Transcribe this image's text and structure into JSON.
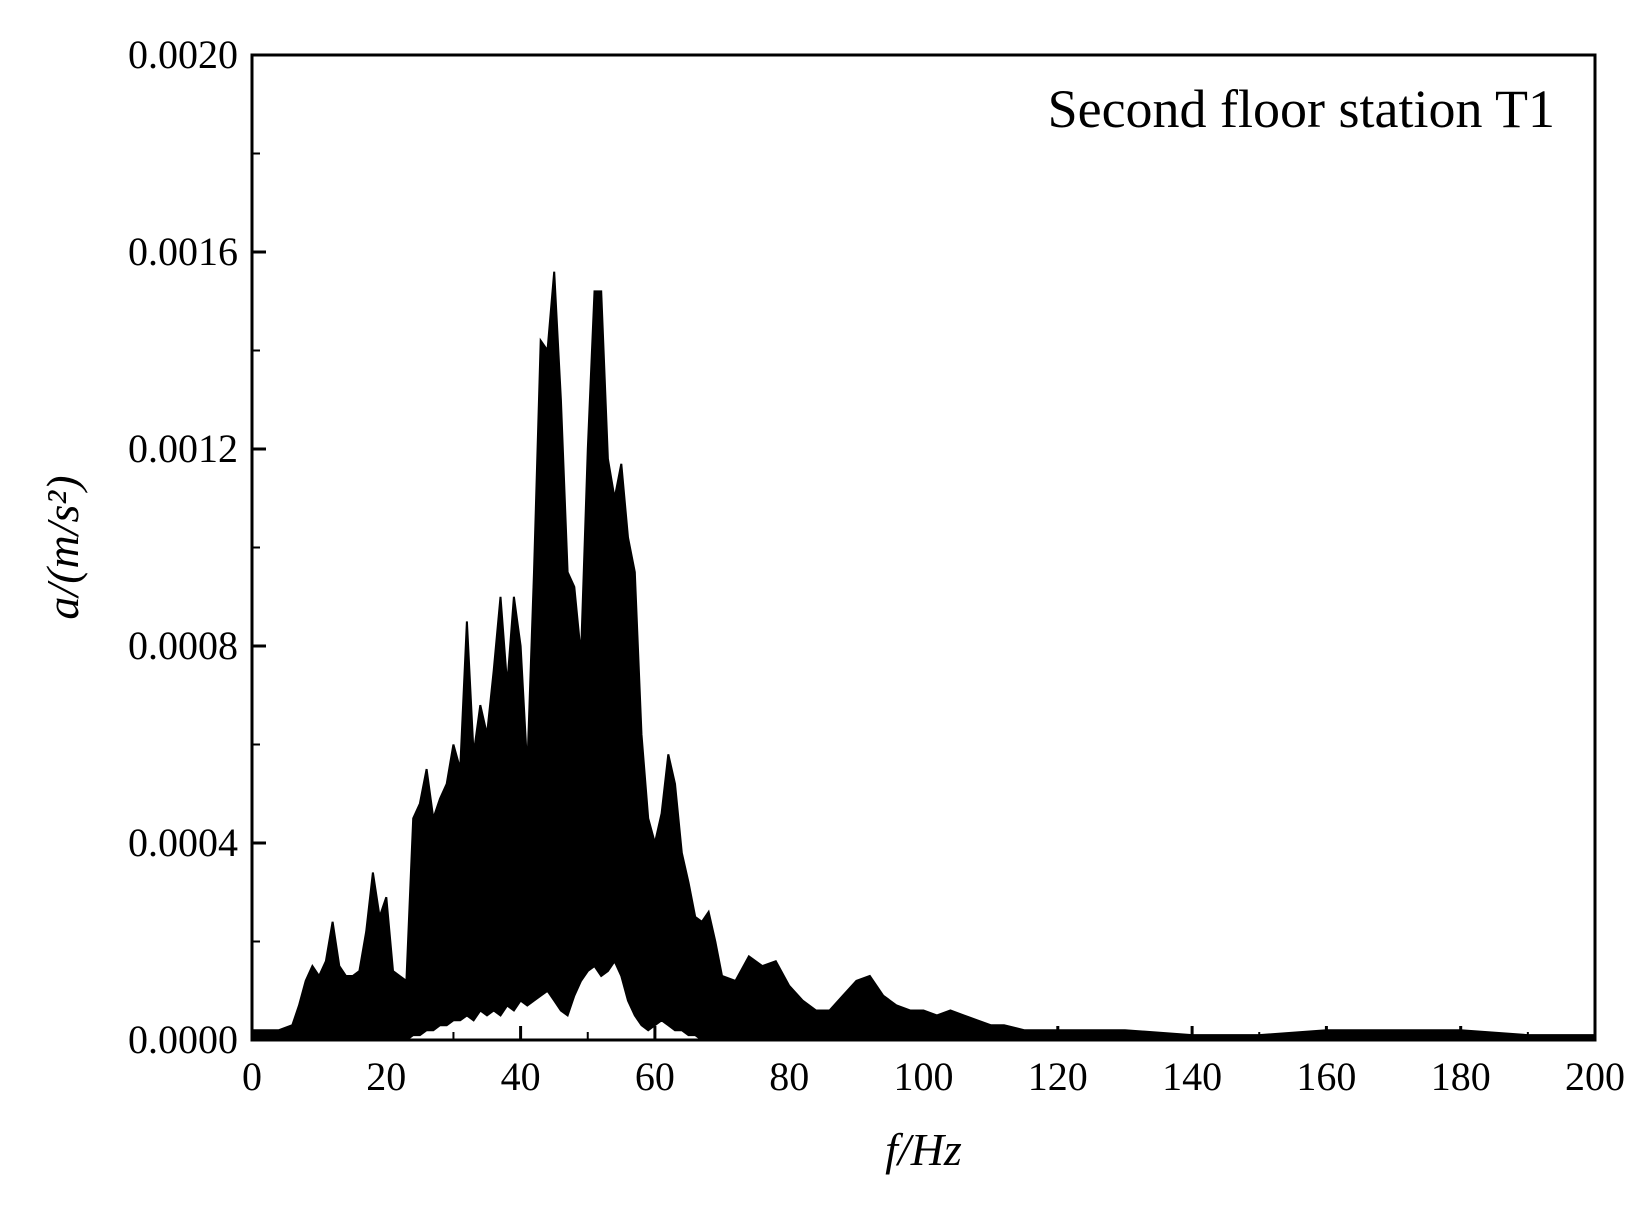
{
  "chart_data": {
    "type": "line",
    "title": "",
    "legend": {
      "text": "Second floor station T1",
      "placement": "top-right"
    },
    "xlabel": "f/Hz",
    "ylabel": "a/(m/s²)",
    "xlim": [
      0,
      200
    ],
    "ylim": [
      0,
      0.002
    ],
    "x_ticks": [
      0,
      20,
      40,
      60,
      80,
      100,
      120,
      140,
      160,
      180,
      200
    ],
    "x_tick_labels": [
      "0",
      "20",
      "40",
      "60",
      "80",
      "100",
      "120",
      "140",
      "160",
      "180",
      "200"
    ],
    "y_ticks": [
      0,
      0.0004,
      0.0008,
      0.0012,
      0.0016,
      0.002
    ],
    "y_tick_labels": [
      "0.0000",
      "0.0004",
      "0.0008",
      "0.0012",
      "0.0016",
      "0.0020"
    ],
    "grid": false,
    "series": [
      {
        "color": "#000000",
        "x": [
          0,
          2,
          4,
          6,
          7,
          8,
          9,
          10,
          11,
          12,
          13,
          14,
          15,
          16,
          17,
          18,
          19,
          20,
          21,
          22,
          23,
          24,
          25,
          26,
          27,
          28,
          29,
          30,
          31,
          32,
          33,
          34,
          35,
          36,
          37,
          38,
          39,
          40,
          41,
          42,
          43,
          44,
          45,
          46,
          47,
          48,
          49,
          50,
          51,
          52,
          53,
          54,
          55,
          56,
          57,
          58,
          59,
          60,
          61,
          62,
          63,
          64,
          65,
          66,
          67,
          68,
          69,
          70,
          72,
          74,
          76,
          78,
          80,
          82,
          84,
          86,
          88,
          90,
          92,
          94,
          96,
          98,
          100,
          102,
          104,
          106,
          108,
          110,
          112,
          115,
          120,
          125,
          130,
          140,
          150,
          160,
          170,
          180,
          190,
          200
        ],
        "low": [
          0,
          0,
          0,
          0,
          0,
          0,
          0,
          0,
          0,
          0,
          0,
          0,
          0,
          0,
          0,
          0,
          0,
          0,
          0,
          0,
          0,
          1e-05,
          1e-05,
          2e-05,
          2e-05,
          3e-05,
          3e-05,
          4e-05,
          4e-05,
          5e-05,
          4e-05,
          6e-05,
          5e-05,
          6e-05,
          5e-05,
          7e-05,
          6e-05,
          8e-05,
          7e-05,
          8e-05,
          9e-05,
          0.0001,
          8e-05,
          6e-05,
          5e-05,
          9e-05,
          0.00012,
          0.00014,
          0.00015,
          0.00013,
          0.00014,
          0.00016,
          0.00013,
          8e-05,
          5e-05,
          3e-05,
          2e-05,
          3e-05,
          4e-05,
          3e-05,
          2e-05,
          2e-05,
          1e-05,
          1e-05,
          0,
          0,
          0,
          0,
          0,
          0,
          0,
          0,
          0,
          0,
          0,
          0,
          0,
          0,
          0,
          0,
          0,
          0,
          0,
          0,
          0,
          0,
          0,
          0,
          0,
          0,
          0,
          0,
          0,
          0,
          0,
          0,
          0,
          0,
          0,
          0
        ],
        "high": [
          2e-05,
          2e-05,
          2e-05,
          3e-05,
          7e-05,
          0.00012,
          0.00015,
          0.00013,
          0.00016,
          0.00024,
          0.00015,
          0.00013,
          0.00013,
          0.00014,
          0.00022,
          0.00034,
          0.00025,
          0.00029,
          0.00014,
          0.00013,
          0.00012,
          0.00045,
          0.00048,
          0.00055,
          0.00045,
          0.00049,
          0.00052,
          0.0006,
          0.00055,
          0.00085,
          0.00058,
          0.00068,
          0.00062,
          0.00075,
          0.0009,
          0.00072,
          0.0009,
          0.0008,
          0.00055,
          0.00095,
          0.00142,
          0.0014,
          0.00156,
          0.0013,
          0.00095,
          0.00092,
          0.00078,
          0.0012,
          0.00152,
          0.00152,
          0.00118,
          0.0011,
          0.00117,
          0.00102,
          0.00095,
          0.00062,
          0.00045,
          0.0004,
          0.00046,
          0.00058,
          0.00052,
          0.00038,
          0.00032,
          0.00025,
          0.00024,
          0.00026,
          0.0002,
          0.00013,
          0.00012,
          0.00017,
          0.00015,
          0.00016,
          0.00011,
          8e-05,
          6e-05,
          6e-05,
          9e-05,
          0.00012,
          0.00013,
          9e-05,
          7e-05,
          6e-05,
          6e-05,
          5e-05,
          6e-05,
          5e-05,
          4e-05,
          3e-05,
          3e-05,
          2e-05,
          2e-05,
          2e-05,
          2e-05,
          1e-05,
          1e-05,
          2e-05,
          2e-05,
          2e-05,
          1e-05,
          1e-05
        ]
      }
    ]
  }
}
